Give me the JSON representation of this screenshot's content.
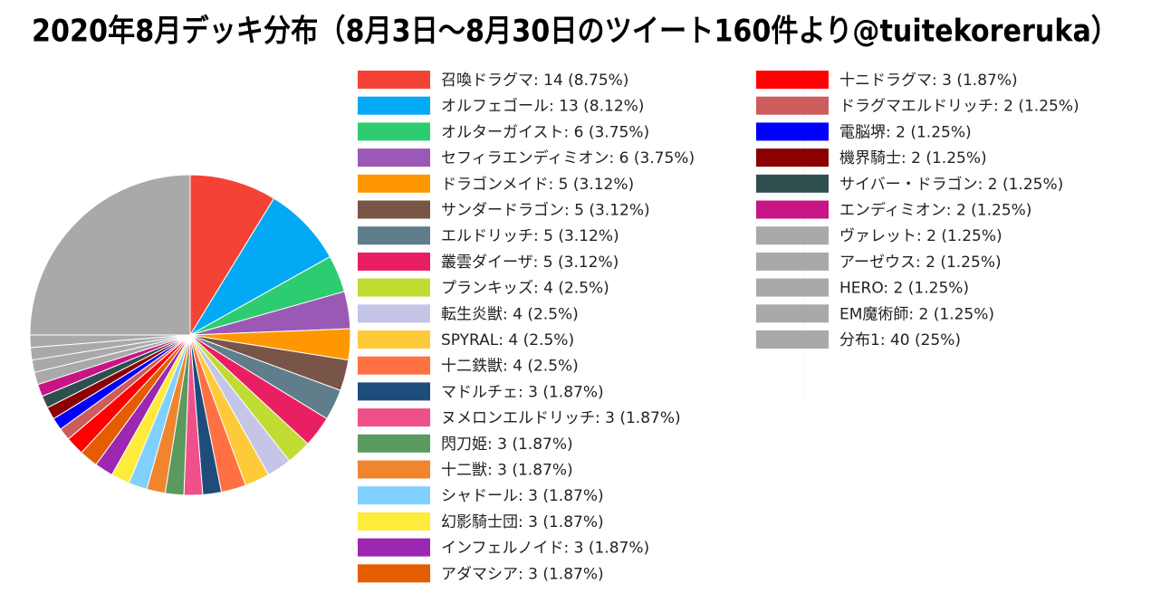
{
  "chart_data": {
    "type": "pie",
    "title": "2020年8月デッキ分布（8月3日～8月30日のツイート160件より@tuitekoreruka）",
    "categories": [
      "召喚ドラグマ: 14 (8.75%)",
      "オルフェゴール: 13 (8.12%)",
      "オルターガイスト: 6 (3.75%)",
      "セフィラエンディミオン: 6 (3.75%)",
      "ドラゴンメイド: 5 (3.12%)",
      "サンダードラゴン: 5 (3.12%)",
      "エルドリッチ: 5 (3.12%)",
      "叢雲ダイーザ: 5 (3.12%)",
      "プランキッズ: 4 (2.5%)",
      "転生炎獣: 4 (2.5%)",
      "SPYRAL: 4 (2.5%)",
      "十二鉄獣: 4 (2.5%)",
      "マドルチェ: 3 (1.87%)",
      "ヌメロンエルドリッチ: 3 (1.87%)",
      "閃刀姫: 3 (1.87%)",
      "十二獣: 3 (1.87%)",
      "シャドール: 3 (1.87%)",
      "幻影騎士団: 3 (1.87%)",
      "インフェルノイド: 3 (1.87%)",
      "アダマシア: 3 (1.87%)",
      "十ニドラグマ: 3 (1.87%)",
      "ドラグマエルドリッチ: 2 (1.25%)",
      "電脳堺: 2 (1.25%)",
      "機界騎士: 2 (1.25%)",
      "サイバー・ドラゴン: 2 (1.25%)",
      "エンディミオン: 2 (1.25%)",
      "ヴァレット: 2 (1.25%)",
      "アーゼウス: 2 (1.25%)",
      "HERO: 2 (1.25%)",
      "EM魔術師: 2 (1.25%)",
      "分布1: 40 (25%)"
    ],
    "values": [
      14,
      13,
      6,
      6,
      5,
      5,
      5,
      5,
      4,
      4,
      4,
      4,
      3,
      3,
      3,
      3,
      3,
      3,
      3,
      3,
      3,
      2,
      2,
      2,
      2,
      2,
      2,
      2,
      2,
      2,
      40
    ],
    "colors": [
      "#f44336",
      "#03a9f4",
      "#2ecc71",
      "#9b59b6",
      "#ff9800",
      "#795548",
      "#607d8b",
      "#e91e63",
      "#c0dc33",
      "#c5c5e8",
      "#ffca3a",
      "#ff7043",
      "#1e4d7b",
      "#f0508a",
      "#5a9a5e",
      "#f0852e",
      "#80d0ff",
      "#ffeb3b",
      "#9c27b0",
      "#e65c00",
      "#ff0000",
      "#cd5c5c",
      "#0000ff",
      "#8b0000",
      "#2f4f4f",
      "#c71585",
      "#a9a9a9",
      "#a9a9a9",
      "#a9a9a9",
      "#a9a9a9",
      "#a9a9a9"
    ]
  }
}
